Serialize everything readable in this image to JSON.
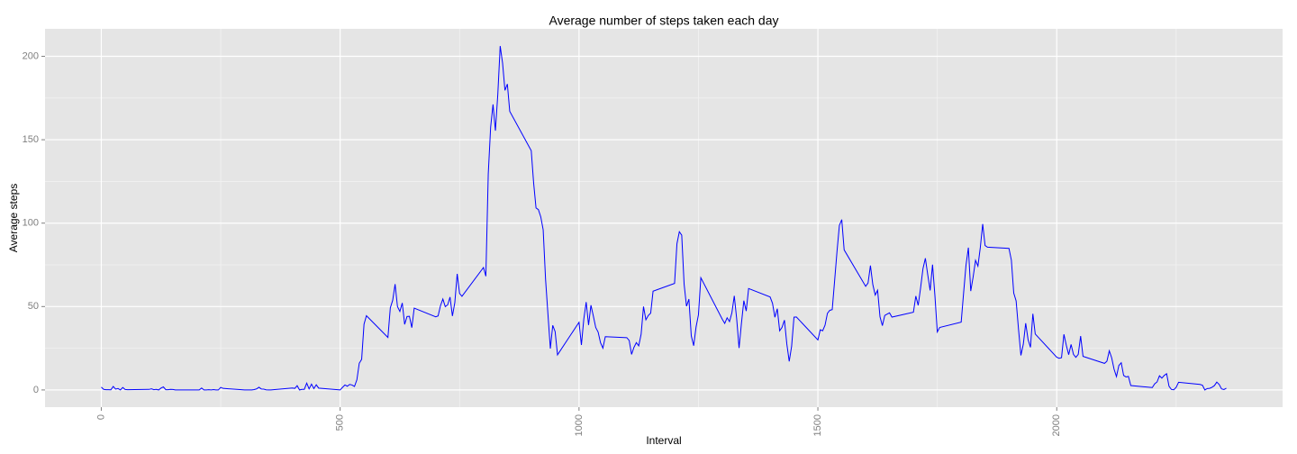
{
  "chart_data": {
    "type": "line",
    "title": "Average number of steps taken each day",
    "x_label": "Interval",
    "y_label": "Average steps",
    "xlim": [
      -117.75,
      2472.75
    ],
    "ylim": [
      -10.31,
      216.48
    ],
    "xticks": [
      0,
      500,
      1000,
      1500,
      2000
    ],
    "yticks": [
      0,
      50,
      100,
      150,
      200
    ],
    "minor_xticks": [
      250,
      750,
      1250,
      1750,
      2250
    ],
    "minor_yticks": [
      25,
      75,
      125,
      175
    ],
    "grid": true,
    "color": "#0000ff",
    "x": [
      0,
      5,
      10,
      15,
      20,
      25,
      30,
      35,
      40,
      45,
      50,
      55,
      100,
      105,
      110,
      115,
      120,
      125,
      130,
      135,
      140,
      145,
      150,
      155,
      200,
      205,
      210,
      215,
      220,
      225,
      230,
      235,
      240,
      245,
      250,
      255,
      300,
      305,
      310,
      315,
      320,
      325,
      330,
      335,
      340,
      345,
      350,
      355,
      400,
      405,
      410,
      415,
      420,
      425,
      430,
      435,
      440,
      445,
      450,
      455,
      500,
      505,
      510,
      515,
      520,
      525,
      530,
      535,
      540,
      545,
      550,
      555,
      600,
      605,
      610,
      615,
      620,
      625,
      630,
      635,
      640,
      645,
      650,
      655,
      700,
      705,
      710,
      715,
      720,
      725,
      730,
      735,
      740,
      745,
      750,
      755,
      800,
      805,
      810,
      815,
      820,
      825,
      830,
      835,
      840,
      845,
      850,
      855,
      900,
      905,
      910,
      915,
      920,
      925,
      930,
      935,
      940,
      945,
      950,
      955,
      1000,
      1005,
      1010,
      1015,
      1020,
      1025,
      1030,
      1035,
      1040,
      1045,
      1050,
      1055,
      1100,
      1105,
      1110,
      1115,
      1120,
      1125,
      1130,
      1135,
      1140,
      1145,
      1150,
      1155,
      1200,
      1205,
      1210,
      1215,
      1220,
      1225,
      1230,
      1235,
      1240,
      1245,
      1250,
      1255,
      1300,
      1305,
      1310,
      1315,
      1320,
      1325,
      1330,
      1335,
      1340,
      1345,
      1350,
      1355,
      1400,
      1405,
      1410,
      1415,
      1420,
      1425,
      1430,
      1435,
      1440,
      1445,
      1450,
      1455,
      1500,
      1505,
      1510,
      1515,
      1520,
      1525,
      1530,
      1535,
      1540,
      1545,
      1550,
      1555,
      1600,
      1605,
      1610,
      1615,
      1620,
      1625,
      1630,
      1635,
      1640,
      1645,
      1650,
      1655,
      1700,
      1705,
      1710,
      1715,
      1720,
      1725,
      1730,
      1735,
      1740,
      1745,
      1750,
      1755,
      1800,
      1805,
      1810,
      1815,
      1820,
      1825,
      1830,
      1835,
      1840,
      1845,
      1850,
      1855,
      1900,
      1905,
      1910,
      1915,
      1920,
      1925,
      1930,
      1935,
      1940,
      1945,
      1950,
      1955,
      2000,
      2005,
      2010,
      2015,
      2020,
      2025,
      2030,
      2035,
      2040,
      2045,
      2050,
      2055,
      2100,
      2105,
      2110,
      2115,
      2120,
      2125,
      2130,
      2135,
      2140,
      2145,
      2150,
      2155,
      2200,
      2205,
      2210,
      2215,
      2220,
      2225,
      2230,
      2235,
      2240,
      2245,
      2250,
      2255,
      2300,
      2305,
      2310,
      2315,
      2320,
      2325,
      2330,
      2335,
      2340,
      2345,
      2350,
      2355
    ],
    "values": [
      1.72,
      0.34,
      0.13,
      0.15,
      0.08,
      2.09,
      0.53,
      0.87,
      0,
      1.47,
      0.3,
      0.13,
      0.32,
      0.68,
      0.15,
      0.34,
      0,
      1.11,
      1.83,
      0.17,
      0.17,
      0.38,
      0.26,
      0,
      0,
      0,
      1.13,
      0,
      0,
      0.13,
      0,
      0.23,
      0,
      0,
      1.55,
      0.94,
      0,
      0,
      0,
      0,
      0.21,
      0.62,
      1.62,
      0.58,
      0.49,
      0.08,
      0,
      0,
      1.19,
      0.94,
      2.57,
      0,
      0.34,
      0.36,
      4.11,
      0.66,
      3.49,
      0.83,
      3.11,
      1.11,
      0,
      1.57,
      3,
      2.25,
      3.32,
      2.96,
      2.09,
      6.06,
      16.02,
      18.34,
      39.45,
      44.49,
      31.49,
      49.26,
      53.77,
      63.45,
      49.96,
      47.08,
      52.15,
      39.34,
      44.02,
      44.17,
      37.36,
      49.04,
      43.81,
      44.38,
      50.51,
      54.51,
      49.92,
      50.98,
      55.68,
      44.32,
      52.26,
      69.55,
      57.85,
      56.15,
      73.38,
      68.21,
      129.43,
      157.53,
      171.15,
      155.4,
      177.3,
      206.17,
      195.92,
      179.57,
      183.4,
      167.02,
      143.45,
      124.04,
      109.11,
      108.11,
      103.72,
      95.97,
      66.21,
      45.23,
      24.79,
      38.75,
      34.98,
      21.06,
      40.57,
      26.98,
      42.42,
      52.66,
      38.92,
      50.79,
      44.28,
      37.42,
      34.7,
      28.34,
      25.09,
      31.94,
      31.36,
      29.68,
      21.32,
      25.55,
      28.38,
      26.47,
      33.43,
      49.98,
      42.04,
      44.6,
      46.04,
      59.19,
      63.87,
      87.7,
      94.85,
      92.77,
      63.4,
      50.17,
      54.47,
      32.42,
      26.53,
      37.74,
      45.06,
      67.28,
      42.34,
      39.88,
      43.26,
      40.98,
      46.25,
      56.43,
      42.75,
      25.13,
      39.96,
      53.55,
      47.32,
      60.81,
      55.75,
      51.96,
      43.58,
      48.7,
      35.47,
      37.55,
      41.85,
      27.51,
      17.11,
      26.08,
      43.62,
      43.77,
      30.02,
      36.07,
      35.49,
      38.85,
      45.96,
      47.75,
      48.13,
      65.32,
      82.91,
      98.66,
      102.11,
      83.96,
      62.13,
      64.13,
      74.55,
      63.17,
      56.91,
      59.77,
      43.87,
      38.57,
      44.66,
      45.45,
      46.21,
      43.68,
      46.62,
      56.3,
      50.72,
      61.23,
      72.72,
      78.94,
      68.94,
      59.66,
      75.09,
      56.51,
      34.77,
      37.45,
      40.68,
      58.02,
      74.7,
      85.32,
      59.26,
      67.77,
      77.7,
      74.25,
      85.34,
      99.45,
      86.58,
      85.6,
      84.87,
      77.83,
      58.04,
      53.36,
      36.32,
      20.72,
      27.4,
      40.02,
      30.21,
      25.55,
      45.66,
      33.53,
      19.62,
      19.02,
      19.34,
      33.34,
      26.81,
      21.17,
      27.3,
      21.34,
      19.55,
      21.32,
      32.3,
      20.15,
      15.94,
      17.23,
      23.45,
      19.25,
      12.45,
      8.02,
      14.66,
      16.3,
      8.68,
      7.79,
      8.13,
      2.62,
      1.45,
      3.68,
      4.81,
      8.51,
      7.08,
      8.7,
      9.75,
      2.21,
      0.32,
      0.11,
      1.6,
      4.6,
      3.3,
      2.85,
      0,
      0.83,
      0.96,
      1.59,
      2.6,
      4.7,
      3.3,
      0.64,
      0.23,
      1.08
    ]
  }
}
